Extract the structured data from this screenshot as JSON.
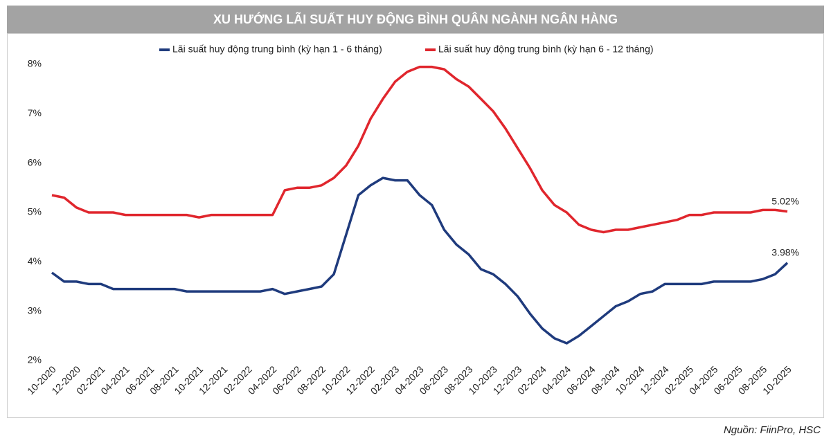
{
  "chart_data": {
    "type": "line",
    "title": "XU HƯỚNG LÃI SUẤT HUY ĐỘNG BÌNH QUÂN NGÀNH NGÂN HÀNG",
    "source": "Nguồn: FiinPro, HSC",
    "categories": [
      "10-2020",
      null,
      "12-2020",
      null,
      "02-2021",
      null,
      "04-2021",
      null,
      "06-2021",
      null,
      "08-2021",
      null,
      "10-2021",
      null,
      "12-2021",
      null,
      "02-2022",
      null,
      "04-2022",
      null,
      "06-2022",
      null,
      "08-2022",
      null,
      "10-2022",
      null,
      "12-2022",
      null,
      "02-2023",
      null,
      "04-2023",
      null,
      "06-2023",
      null,
      "08-2023",
      null,
      "10-2023",
      null,
      "12-2023",
      null,
      "02-2024",
      null,
      "04-2024",
      null,
      "06-2024",
      null,
      "08-2024",
      null,
      "10-2024",
      null,
      "12-2024",
      null,
      "02-2025",
      null,
      "04-2025",
      null,
      "06-2025",
      null,
      "08-2025",
      null,
      "10-2025"
    ],
    "series": [
      {
        "name": "Lãi suất huy động trung bình (kỳ hạn 1 - 6 tháng)",
        "color": "#1f3b7d",
        "values": [
          3.78,
          3.6,
          3.6,
          3.55,
          3.55,
          3.45,
          3.45,
          3.45,
          3.45,
          3.45,
          3.45,
          3.4,
          3.4,
          3.4,
          3.4,
          3.4,
          3.4,
          3.4,
          3.45,
          3.35,
          3.4,
          3.45,
          3.5,
          3.75,
          4.55,
          5.35,
          5.55,
          5.7,
          5.65,
          5.65,
          5.35,
          5.15,
          4.65,
          4.35,
          4.15,
          3.85,
          3.75,
          3.55,
          3.3,
          2.95,
          2.65,
          2.45,
          2.35,
          2.5,
          2.7,
          2.9,
          3.1,
          3.2,
          3.35,
          3.4,
          3.55,
          3.55,
          3.55,
          3.55,
          3.6,
          3.6,
          3.6,
          3.6,
          3.65,
          3.75,
          3.98
        ],
        "value_labels": {
          "60": "3.98%"
        }
      },
      {
        "name": "Lãi suất huy động trung bình (kỳ hạn 6 - 12 tháng)",
        "color": "#e0262d",
        "values": [
          5.35,
          5.3,
          5.1,
          5.0,
          5.0,
          5.0,
          4.95,
          4.95,
          4.95,
          4.95,
          4.95,
          4.95,
          4.9,
          4.95,
          4.95,
          4.95,
          4.95,
          4.95,
          4.95,
          5.45,
          5.5,
          5.5,
          5.55,
          5.7,
          5.95,
          6.35,
          6.9,
          7.3,
          7.65,
          7.85,
          7.95,
          7.95,
          7.9,
          7.7,
          7.55,
          7.3,
          7.05,
          6.7,
          6.3,
          5.9,
          5.45,
          5.15,
          5.0,
          4.75,
          4.65,
          4.6,
          4.65,
          4.65,
          4.7,
          4.75,
          4.8,
          4.85,
          4.95,
          4.95,
          5.0,
          5.0,
          5.0,
          5.0,
          5.05,
          5.05,
          5.02
        ],
        "value_labels": {
          "60": "5.02%"
        }
      }
    ],
    "ylim": [
      2,
      8
    ],
    "yticks": [
      {
        "value": 2,
        "label": "2%"
      },
      {
        "value": 3,
        "label": "3%"
      },
      {
        "value": 4,
        "label": "4%"
      },
      {
        "value": 5,
        "label": "5%"
      },
      {
        "value": 6,
        "label": "6%"
      },
      {
        "value": 7,
        "label": "7%"
      },
      {
        "value": 8,
        "label": "8%"
      }
    ],
    "grid": false
  }
}
